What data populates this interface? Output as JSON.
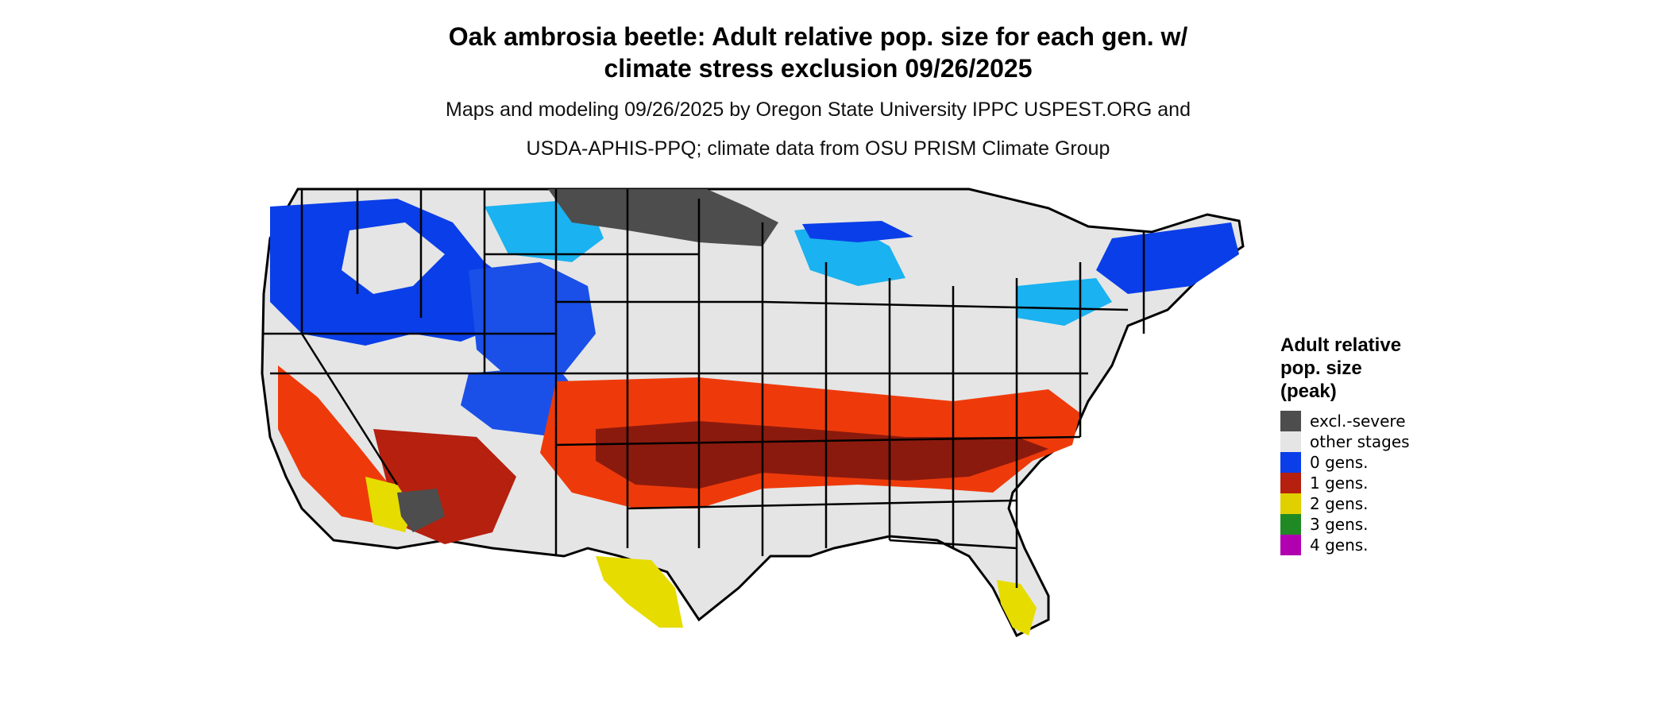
{
  "title_line1": "Oak ambrosia beetle: Adult relative pop. size for each gen. w/",
  "title_line2": "climate stress exclusion 09/26/2025",
  "subtitle_line1": "Maps and modeling 09/26/2025 by Oregon State University IPPC USPEST.ORG and",
  "subtitle_line2": "USDA-APHIS-PPQ; climate data from OSU PRISM Climate Group",
  "legend": {
    "title_line1": "Adult relative",
    "title_line2": "pop. size",
    "title_line3": "(peak)",
    "items": [
      {
        "label": "excl.-severe",
        "color": "#4d4d4d"
      },
      {
        "label": "other stages",
        "color": "#e5e5e5"
      },
      {
        "label": "0 gens.",
        "color": "#0a3ee8"
      },
      {
        "label": "1 gens.",
        "color": "#b5200f"
      },
      {
        "label": "2 gens.",
        "color": "#e0d000"
      },
      {
        "label": "3 gens.",
        "color": "#1f8a24"
      },
      {
        "label": "4 gens.",
        "color": "#b000b0"
      }
    ]
  },
  "colors": {
    "background_land": "#e5e5e5",
    "state_border": "#000000",
    "excluded": "#4d4d4d",
    "zero_gen_dark": "#0a3ee8",
    "zero_gen_light": "#1ab2f0",
    "one_gen_dark": "#8b1a0e",
    "one_gen_bright": "#ee3a0a",
    "two_gen": "#e6dc00"
  }
}
